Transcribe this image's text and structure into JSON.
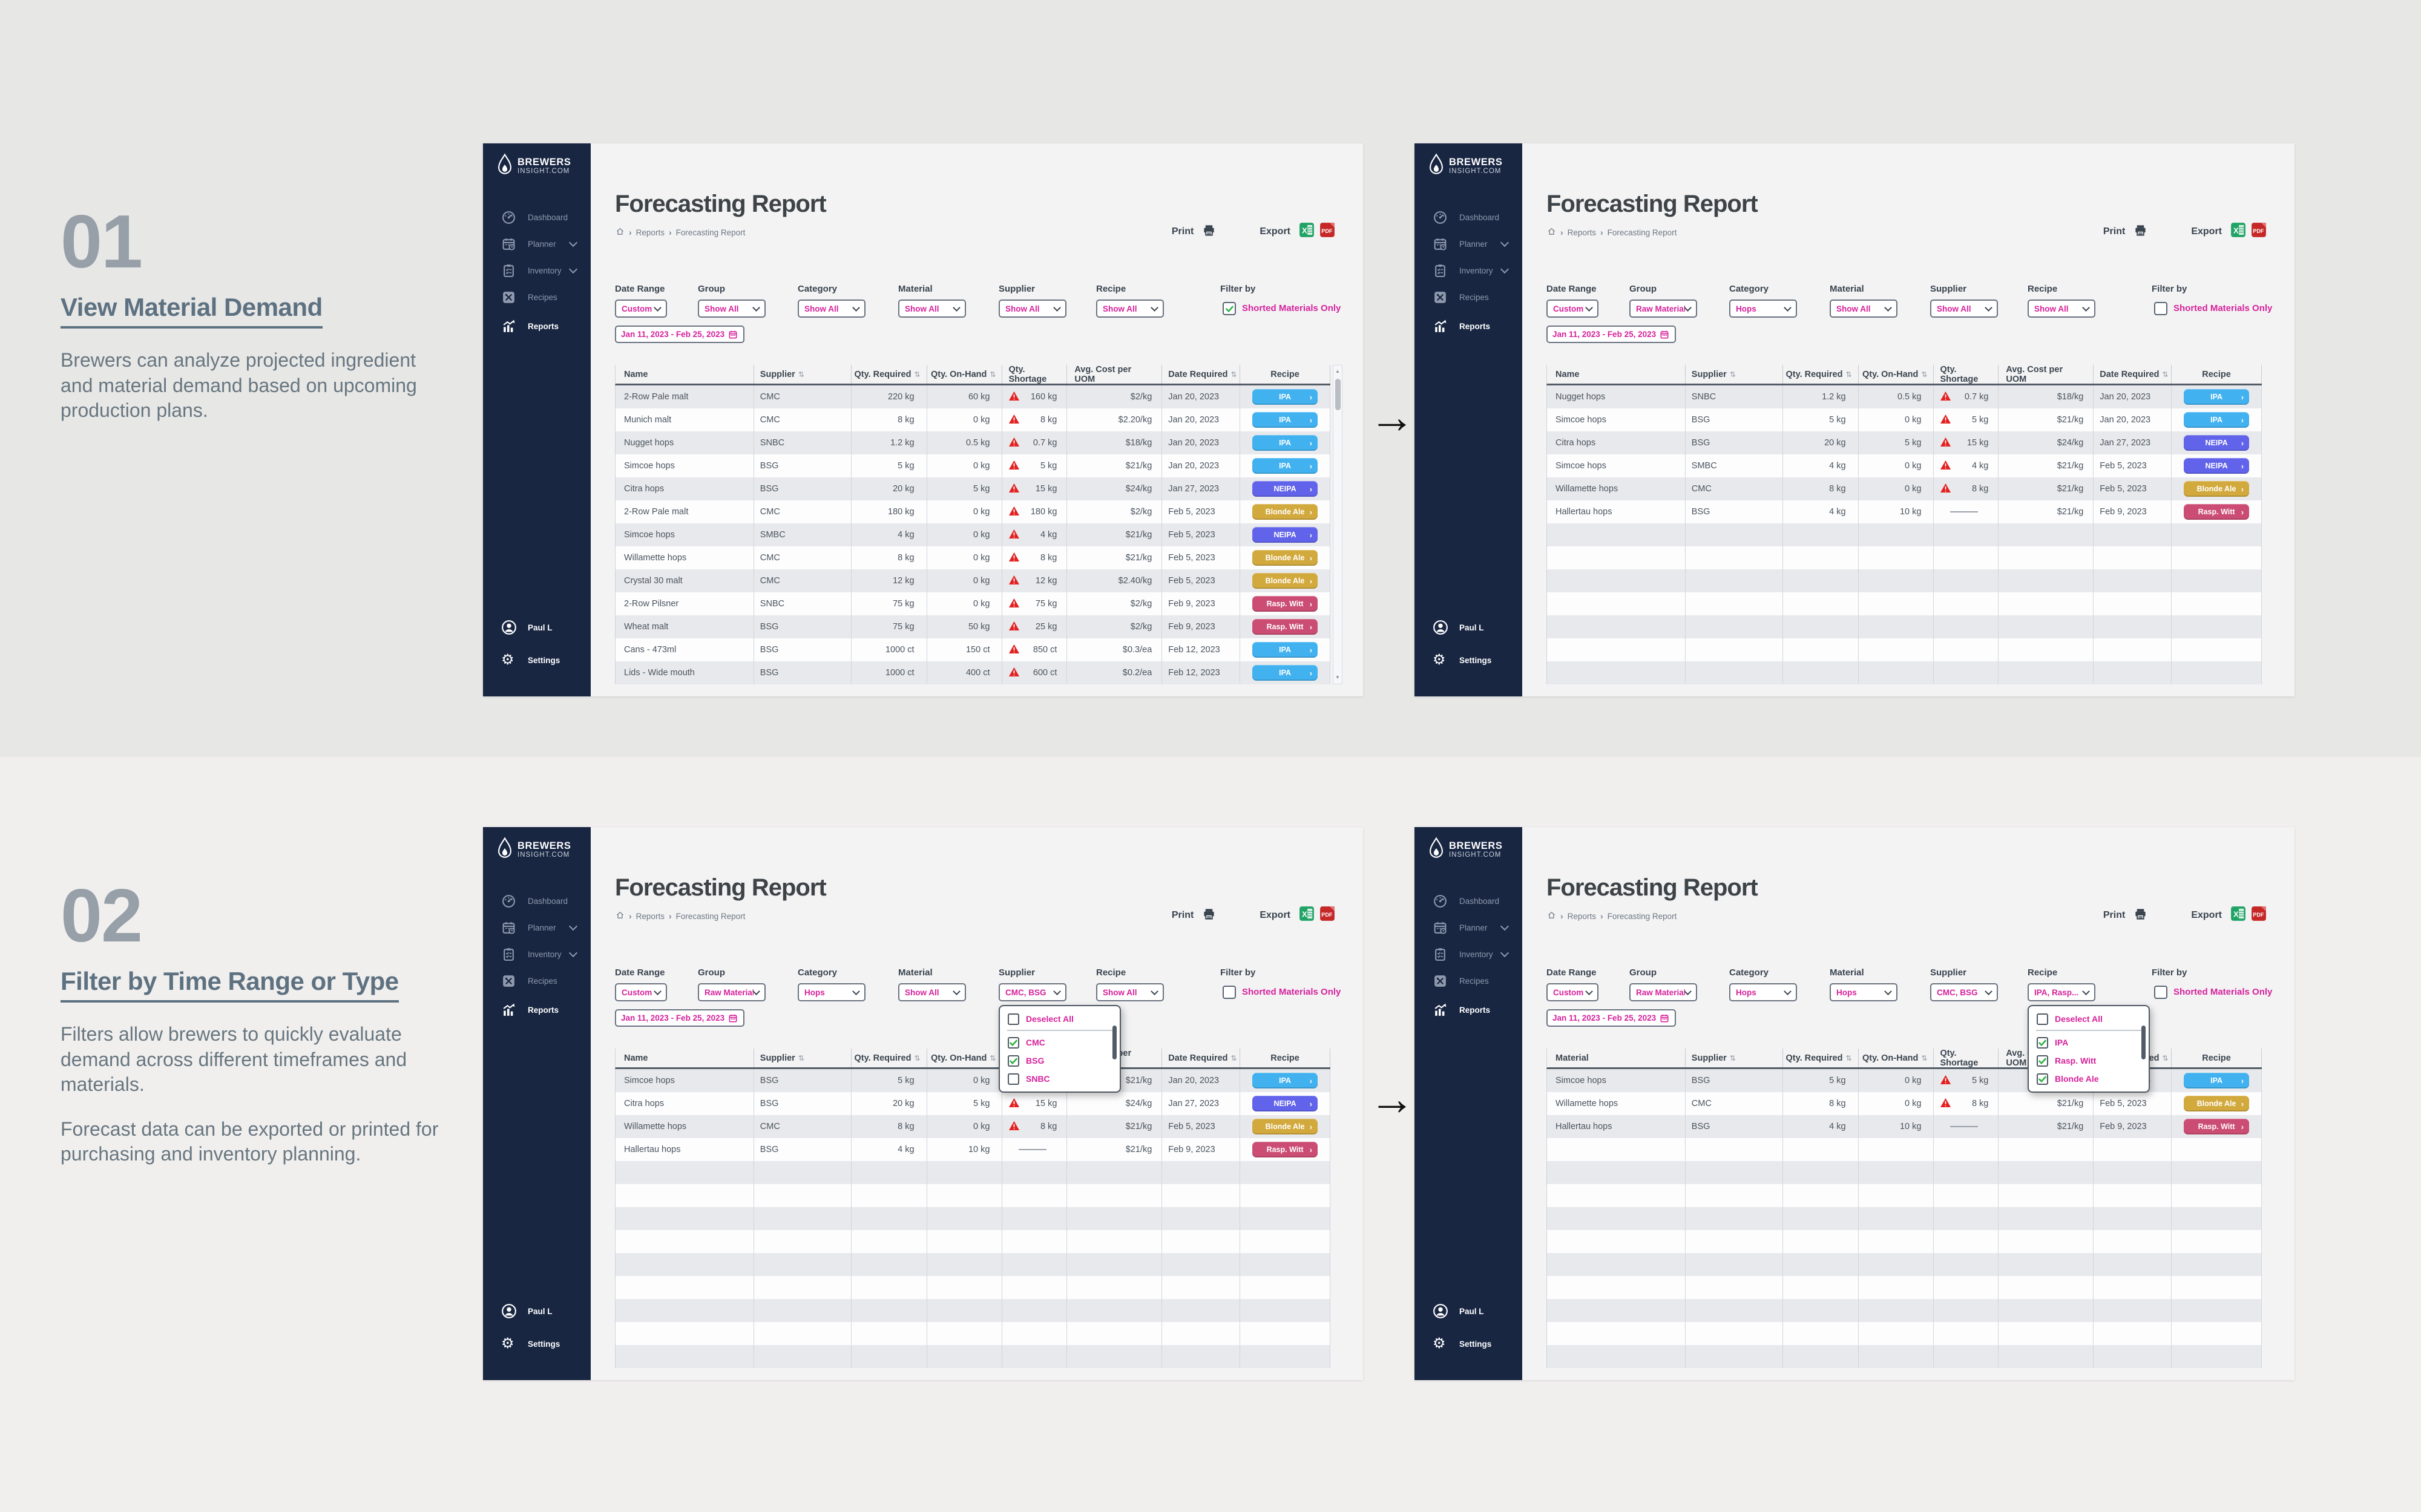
{
  "colors": {
    "accent": "#d6219b",
    "navy": "#182642",
    "warning_red": "#e32020",
    "excel_green": "#21a366",
    "pdf_red": "#c62828",
    "recipe_chips": {
      "IPA": "#41b2ef",
      "NEIPA": "#6163ea",
      "Blonde Ale": "#d2a93c",
      "Rasp. Witt": "#cb4d73"
    }
  },
  "icons": {
    "arrow_right": "→",
    "sort": "⇅",
    "chip_arrow": "›",
    "crumb_sep": "›",
    "gear": "⚙"
  },
  "steps": [
    {
      "number": "01",
      "title": "View Material Demand",
      "para1": "Brewers can analyze projected ingredient and material demand based on upcoming production plans.",
      "para2": ""
    },
    {
      "number": "02",
      "title": "Filter by Time Range or Type",
      "para1": "Filters allow brewers to quickly evaluate demand across different timeframes and materials.",
      "para2": "Forecast data can be exported or printed for purchasing and inventory planning."
    }
  ],
  "sidebar": {
    "logo_line1": "BREWERS",
    "logo_line2": "INSIGHT.COM",
    "items": [
      {
        "label": "Dashboard",
        "icon": "gauge-icon",
        "chevron": false,
        "active": false
      },
      {
        "label": "Planner",
        "icon": "calendar-icon",
        "chevron": true,
        "active": false
      },
      {
        "label": "Inventory",
        "icon": "clipboard-icon",
        "chevron": true,
        "active": false
      },
      {
        "label": "Recipes",
        "icon": "utensils-icon",
        "chevron": false,
        "active": false
      },
      {
        "label": "Reports",
        "icon": "chart-icon",
        "chevron": false,
        "active": true
      }
    ],
    "user": "Paul L",
    "settings": "Settings"
  },
  "report": {
    "title": "Forecasting Report",
    "breadcrumb": [
      "Reports",
      "Forecasting Report"
    ],
    "print_label": "Print",
    "export_label": "Export",
    "filter_labels": {
      "date_range": "Date Range",
      "group": "Group",
      "category": "Category",
      "material": "Material",
      "supplier": "Supplier",
      "recipe": "Recipe",
      "filter_by": "Filter by",
      "shorted": "Shorted Materials Only"
    },
    "date_span": "Jan 11, 2023  -  Feb 25, 2023",
    "table_headers": [
      "Name",
      "Supplier",
      "Qty. Required",
      "Qty. On-Hand",
      "Qty. Shortage",
      "Avg. Cost per UOM",
      "Date Required",
      "Recipe"
    ],
    "sortable_columns": [
      1,
      2,
      3,
      6
    ]
  },
  "panels": [
    {
      "name": "step1-before",
      "first_col_header": "Name",
      "filters": {
        "date_range": "Custom",
        "group": "Show All",
        "category": "Show All",
        "material": "Show All",
        "supplier": "Show All",
        "recipe": "Show All",
        "shorted_checked": true
      },
      "scrollbar": true,
      "empty_rows": 0,
      "open_dropdown": null,
      "rows": [
        [
          "2-Row Pale malt",
          "CMC",
          "220 kg",
          "60 kg",
          "160 kg",
          "$2/kg",
          "Jan 20, 2023",
          "IPA"
        ],
        [
          "Munich malt",
          "CMC",
          "8 kg",
          "0 kg",
          "8 kg",
          "$2.20/kg",
          "Jan 20, 2023",
          "IPA"
        ],
        [
          "Nugget hops",
          "SNBC",
          "1.2 kg",
          "0.5 kg",
          "0.7 kg",
          "$18/kg",
          "Jan 20, 2023",
          "IPA"
        ],
        [
          "Simcoe hops",
          "BSG",
          "5 kg",
          "0 kg",
          "5 kg",
          "$21/kg",
          "Jan 20, 2023",
          "IPA"
        ],
        [
          "Citra hops",
          "BSG",
          "20 kg",
          "5 kg",
          "15 kg",
          "$24/kg",
          "Jan 27, 2023",
          "NEIPA"
        ],
        [
          "2-Row Pale malt",
          "CMC",
          "180 kg",
          "0 kg",
          "180 kg",
          "$2/kg",
          "Feb 5, 2023",
          "Blonde Ale"
        ],
        [
          "Simcoe hops",
          "SMBC",
          "4 kg",
          "0 kg",
          "4 kg",
          "$21/kg",
          "Feb 5, 2023",
          "NEIPA"
        ],
        [
          "Willamette hops",
          "CMC",
          "8 kg",
          "0 kg",
          "8 kg",
          "$21/kg",
          "Feb 5, 2023",
          "Blonde Ale"
        ],
        [
          "Crystal 30 malt",
          "CMC",
          "12 kg",
          "0 kg",
          "12 kg",
          "$2.40/kg",
          "Feb 5, 2023",
          "Blonde Ale"
        ],
        [
          "2-Row Pilsner",
          "SNBC",
          "75 kg",
          "0 kg",
          "75 kg",
          "$2/kg",
          "Feb 9, 2023",
          "Rasp. Witt"
        ],
        [
          "Wheat malt",
          "BSG",
          "75 kg",
          "50 kg",
          "25 kg",
          "$2/kg",
          "Feb 9, 2023",
          "Rasp. Witt"
        ],
        [
          "Cans - 473ml",
          "BSG",
          "1000 ct",
          "150 ct",
          "850 ct",
          "$0.3/ea",
          "Feb 12, 2023",
          "IPA"
        ],
        [
          "Lids - Wide mouth",
          "BSG",
          "1000 ct",
          "400 ct",
          "600 ct",
          "$0.2/ea",
          "Feb 12, 2023",
          "IPA"
        ]
      ]
    },
    {
      "name": "step1-after",
      "first_col_header": "Name",
      "filters": {
        "date_range": "Custom",
        "group": "Raw Materials",
        "category": "Hops",
        "material": "Show All",
        "supplier": "Show All",
        "recipe": "Show All",
        "shorted_checked": false
      },
      "scrollbar": false,
      "empty_rows": 7,
      "open_dropdown": null,
      "rows": [
        [
          "Nugget hops",
          "SNBC",
          "1.2 kg",
          "0.5 kg",
          "0.7 kg",
          "$18/kg",
          "Jan 20, 2023",
          "IPA"
        ],
        [
          "Simcoe hops",
          "BSG",
          "5 kg",
          "0 kg",
          "5 kg",
          "$21/kg",
          "Jan 20, 2023",
          "IPA"
        ],
        [
          "Citra hops",
          "BSG",
          "20 kg",
          "5 kg",
          "15 kg",
          "$24/kg",
          "Jan 27, 2023",
          "NEIPA"
        ],
        [
          "Simcoe hops",
          "SMBC",
          "4 kg",
          "0 kg",
          "4 kg",
          "$21/kg",
          "Feb 5, 2023",
          "NEIPA"
        ],
        [
          "Willamette hops",
          "CMC",
          "8 kg",
          "0 kg",
          "8 kg",
          "$21/kg",
          "Feb 5, 2023",
          "Blonde Ale"
        ],
        [
          "Hallertau hops",
          "BSG",
          "4 kg",
          "10 kg",
          null,
          "$21/kg",
          "Feb 9, 2023",
          "Rasp. Witt"
        ]
      ]
    },
    {
      "name": "step2-before",
      "first_col_header": "Name",
      "filters": {
        "date_range": "Custom",
        "group": "Raw Materials",
        "category": "Hops",
        "material": "Show All",
        "supplier": "CMC, BSG",
        "recipe": "Show All",
        "shorted_checked": false
      },
      "scrollbar": false,
      "empty_rows": 9,
      "open_dropdown": {
        "anchor": "supplier",
        "items": [
          {
            "label": "Deselect All",
            "checked": false
          },
          {
            "label": "CMC",
            "checked": true
          },
          {
            "label": "BSG",
            "checked": true
          },
          {
            "label": "SNBC",
            "checked": false
          }
        ]
      },
      "rows": [
        [
          "Simcoe hops",
          "BSG",
          "5 kg",
          "0 kg",
          "5 kg",
          "$21/kg",
          "Jan 20, 2023",
          "IPA"
        ],
        [
          "Citra hops",
          "BSG",
          "20 kg",
          "5 kg",
          "15 kg",
          "$24/kg",
          "Jan 27, 2023",
          "NEIPA"
        ],
        [
          "Willamette hops",
          "CMC",
          "8 kg",
          "0 kg",
          "8 kg",
          "$21/kg",
          "Feb 5, 2023",
          "Blonde Ale"
        ],
        [
          "Hallertau hops",
          "BSG",
          "4 kg",
          "10 kg",
          null,
          "$21/kg",
          "Feb 9, 2023",
          "Rasp. Witt"
        ]
      ]
    },
    {
      "name": "step2-after",
      "first_col_header": "Material",
      "filters": {
        "date_range": "Custom",
        "group": "Raw Materials",
        "category": "Hops",
        "material": "Hops",
        "supplier": "CMC, BSG",
        "recipe": "IPA, Rasp...",
        "shorted_checked": false
      },
      "scrollbar": false,
      "empty_rows": 10,
      "open_dropdown": {
        "anchor": "recipe",
        "items": [
          {
            "label": "Deselect All",
            "checked": false
          },
          {
            "label": "IPA",
            "checked": true
          },
          {
            "label": "Rasp. Witt",
            "checked": true
          },
          {
            "label": "Blonde Ale",
            "checked": true
          }
        ]
      },
      "rows": [
        [
          "Simcoe hops",
          "BSG",
          "5 kg",
          "0 kg",
          "5 kg",
          "$21/kg",
          "Jan 20, 2023",
          "IPA"
        ],
        [
          "Willamette hops",
          "CMC",
          "8 kg",
          "0 kg",
          "8 kg",
          "$21/kg",
          "Feb 5, 2023",
          "Blonde Ale"
        ],
        [
          "Hallertau hops",
          "BSG",
          "4 kg",
          "10 kg",
          null,
          "$21/kg",
          "Feb 9, 2023",
          "Rasp. Witt"
        ]
      ]
    }
  ]
}
